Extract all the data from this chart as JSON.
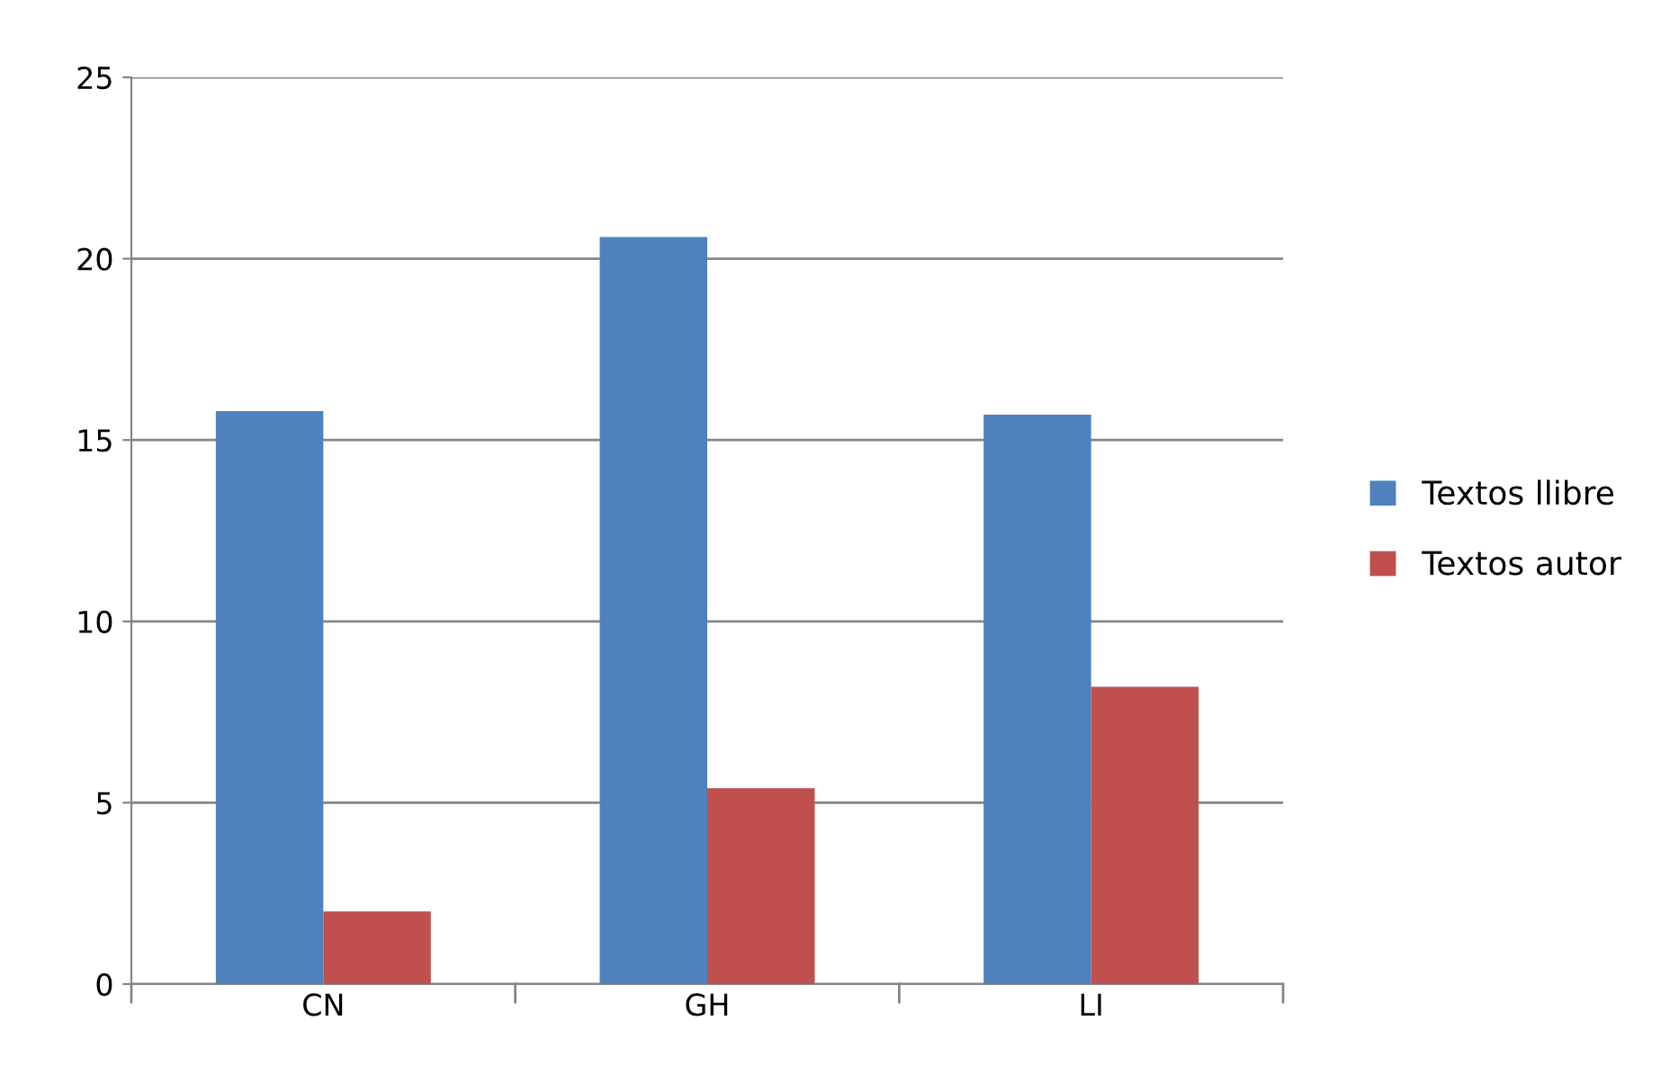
{
  "chart_data": {
    "type": "bar",
    "categories": [
      "CN",
      "GH",
      "LI"
    ],
    "series": [
      {
        "name": "Textos llibre",
        "color": "#4f81bd",
        "values": [
          15.8,
          20.6,
          15.7
        ]
      },
      {
        "name": "Textos autor",
        "color": "#c0504d",
        "values": [
          2.0,
          5.4,
          8.2
        ]
      }
    ],
    "ylim": [
      0,
      25
    ],
    "yticks": [
      0,
      5,
      10,
      15,
      20,
      25
    ],
    "grid": "y",
    "legend": "right"
  }
}
